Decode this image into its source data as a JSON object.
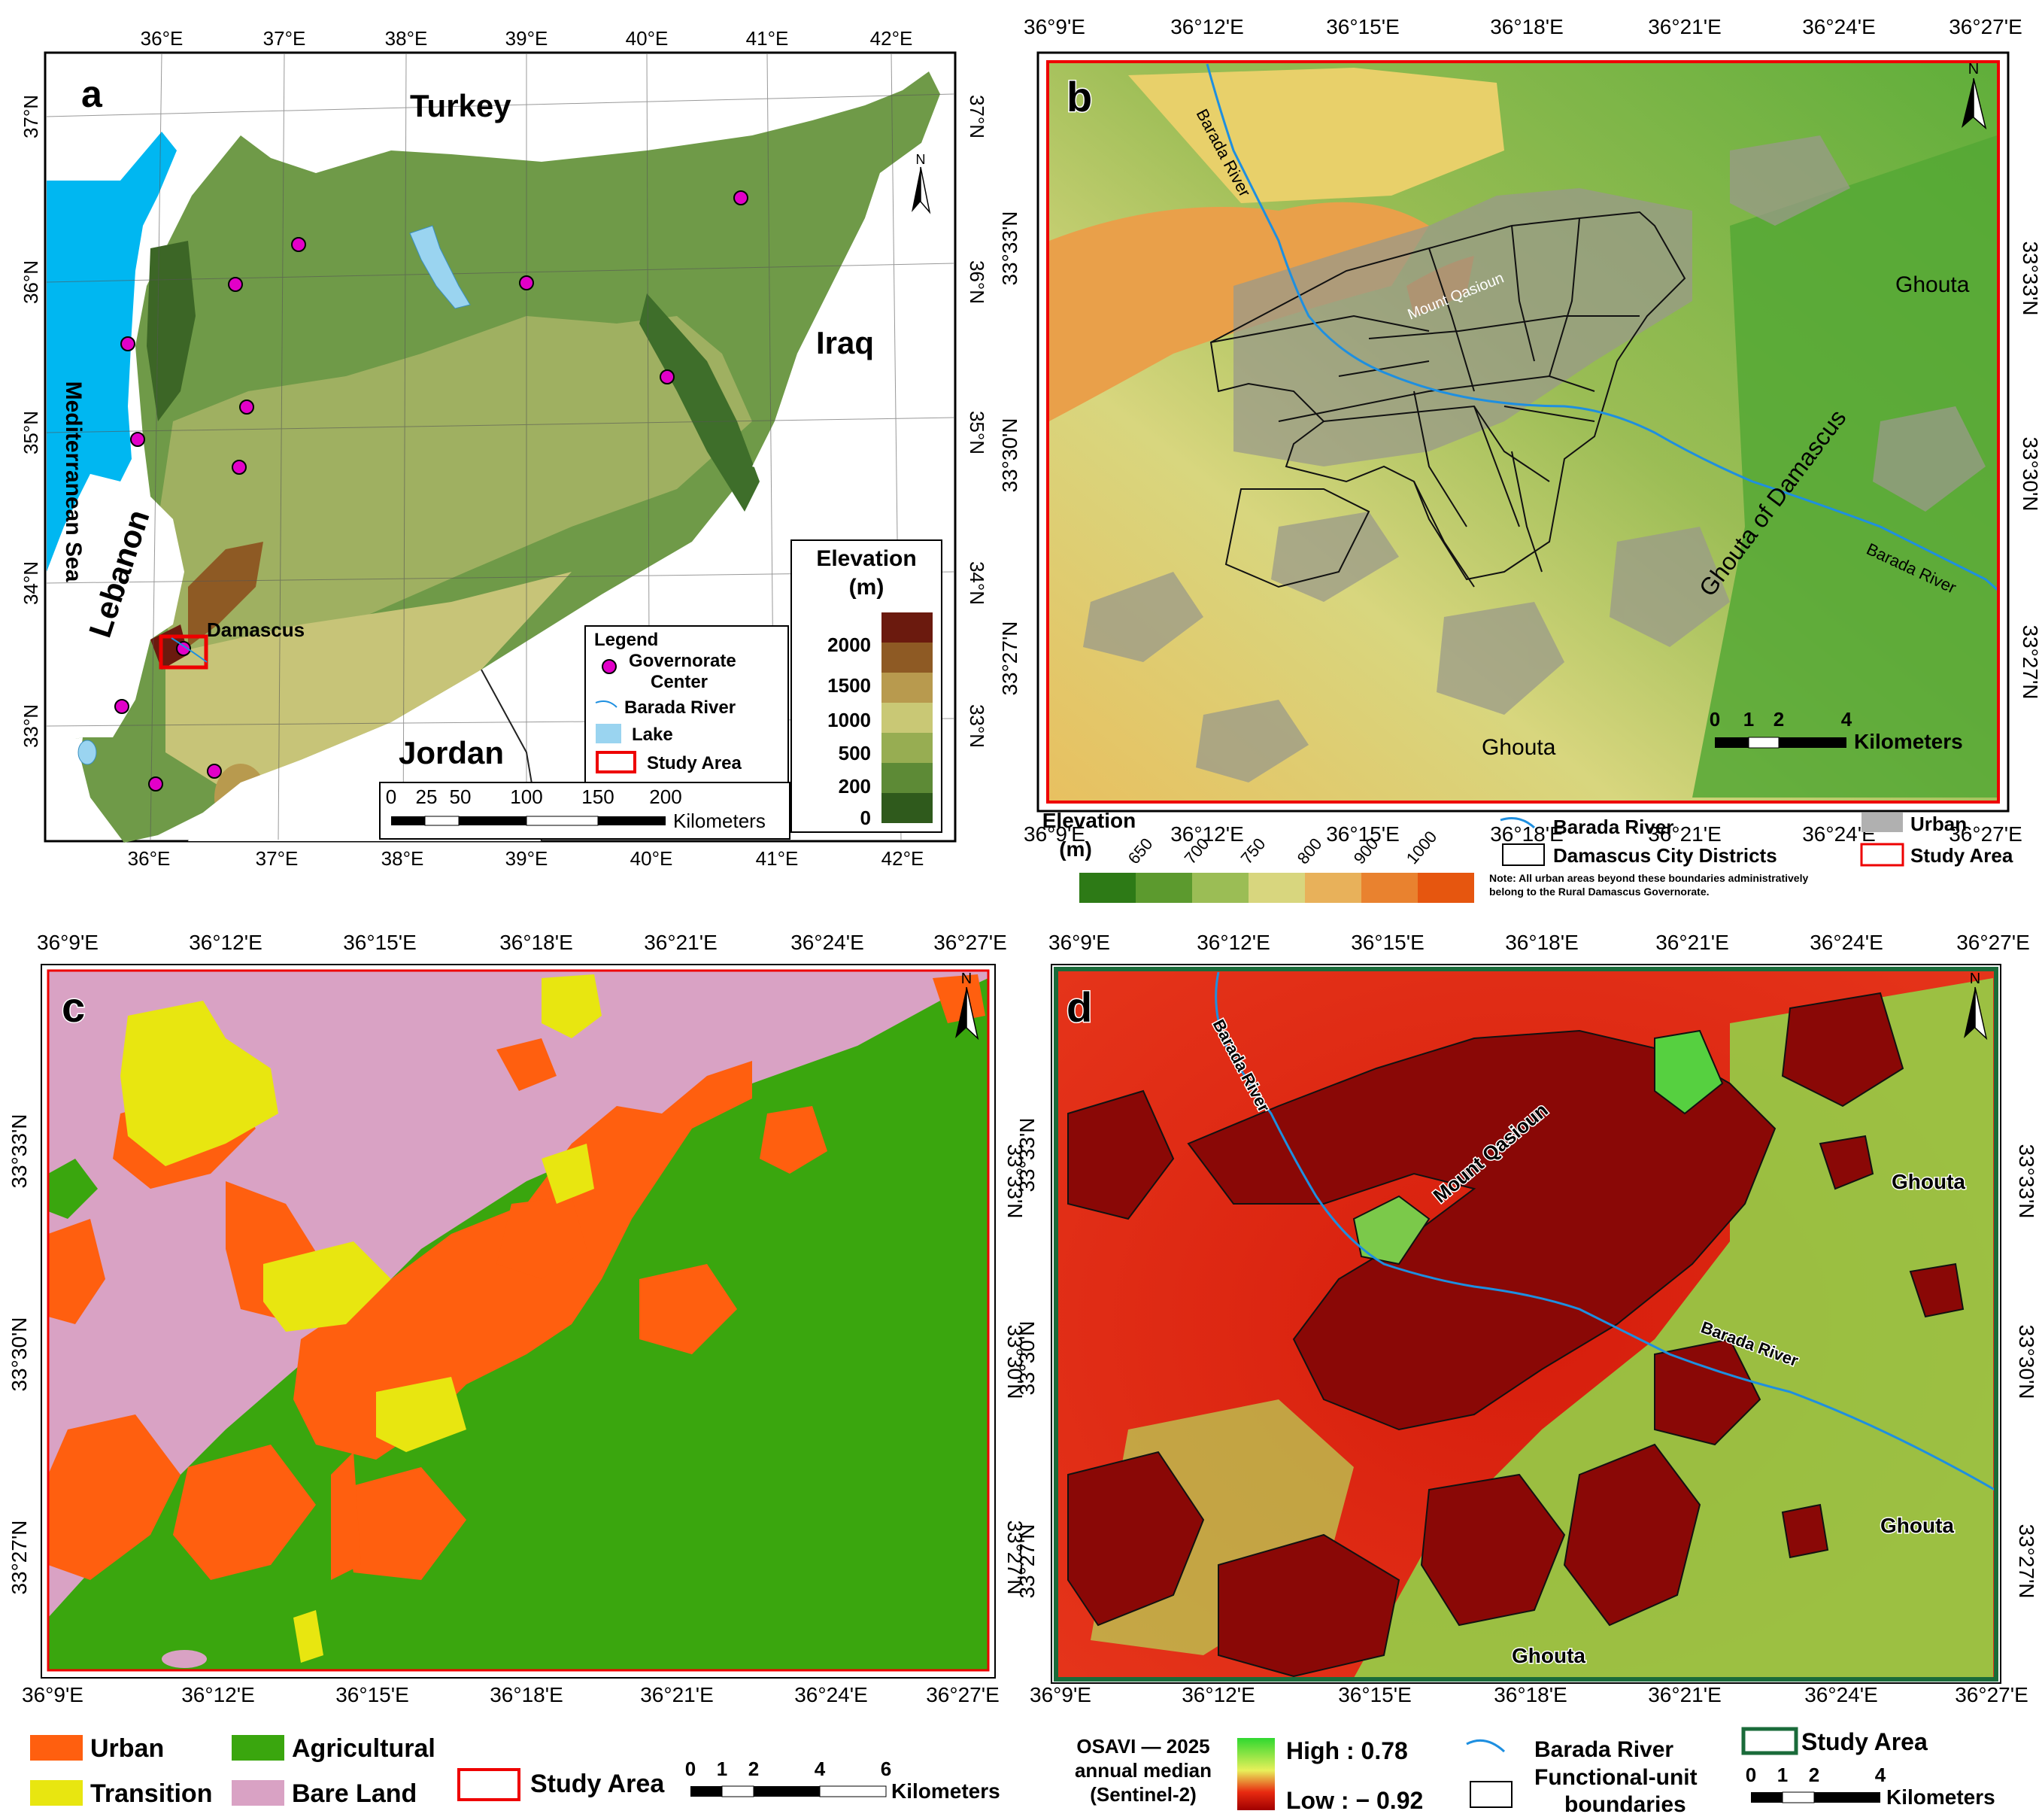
{
  "panel_a": {
    "letter": "a",
    "top_lon_ticks": [
      "36°E",
      "37°E",
      "38°E",
      "39°E",
      "40°E",
      "41°E",
      "42°E"
    ],
    "bottom_lon_ticks": [
      "36°E",
      "37°E",
      "38°E",
      "39°E",
      "40°E",
      "41°E",
      "42°E"
    ],
    "left_lat_ticks": [
      "37°N",
      "36°N",
      "35°N",
      "34°N",
      "33°N"
    ],
    "right_lat_ticks": [
      "37°N",
      "36°N",
      "35°N",
      "34°N",
      "33°N"
    ],
    "countries": {
      "turkey": "Turkey",
      "iraq": "Iraq",
      "jordan": "Jordan",
      "lebanon": "Lebanon",
      "sea": "Mediterranean Sea"
    },
    "city": "Damascus",
    "legend": {
      "title": "Legend",
      "governorate": "Governorate",
      "center": "Center",
      "river": "Barada River",
      "lake": "Lake",
      "study_area": "Study Area"
    },
    "scale": {
      "ticks": [
        "0",
        "25",
        "50",
        "100",
        "150",
        "200"
      ],
      "unit": "Kilometers"
    },
    "elevation": {
      "title_line1": "Elevation",
      "title_line2": "(m)",
      "ticks": [
        "2000",
        "1500",
        "1000",
        "500",
        "200",
        "0"
      ],
      "colors": [
        "#6b1a0e",
        "#8e5a24",
        "#b89a4e",
        "#c9c875",
        "#97ad52",
        "#5d8a36",
        "#2f5a1c"
      ]
    },
    "north": "N"
  },
  "panel_b": {
    "letter": "b",
    "lon_ticks": [
      "36°9'E",
      "36°12'E",
      "36°15'E",
      "36°18'E",
      "36°21'E",
      "36°24'E",
      "36°27'E"
    ],
    "lat_ticks": [
      "33°33'N",
      "33°30'N",
      "33°27'N"
    ],
    "labels": {
      "river1": "Barada River",
      "mount": "Mount Qasioun",
      "ghouta_ne": "Ghouta",
      "ghouta_of_damascus": "Ghouta of Damascus",
      "river2": "Barada River",
      "ghouta_s": "Ghouta"
    },
    "scale": {
      "ticks": [
        "0",
        "1",
        "2",
        "4"
      ],
      "unit": "Kilometers"
    },
    "elevation": {
      "title_line1": "Elevation",
      "title_line2": "(m)",
      "ticks": [
        "650",
        "700",
        "750",
        "800",
        "900",
        "1000"
      ],
      "colors": [
        "#2d7a16",
        "#5c9a2e",
        "#9bbd55",
        "#d8d67e",
        "#e8b15a",
        "#e9822f",
        "#e6560f"
      ]
    },
    "legend": {
      "river": "Barada River",
      "urban": "Urban",
      "districts": "Damascus City Districts",
      "study_area": "Study Area"
    },
    "note_line1": "Note: All urban areas beyond these boundaries administratively",
    "note_line2": "belong to the Rural Damascus Governorate.",
    "north": "N"
  },
  "panel_c": {
    "letter": "c",
    "lon_ticks": [
      "36°9'E",
      "36°12'E",
      "36°15'E",
      "36°18'E",
      "36°21'E",
      "36°24'E",
      "36°27'E"
    ],
    "lat_ticks": [
      "33°33'N",
      "33°30'N",
      "33°27'N"
    ],
    "legend": {
      "urban": "Urban",
      "agricultural": "Agricultural",
      "transition": "Transition",
      "bare": "Bare Land",
      "study_area": "Study Area"
    },
    "colors": {
      "urban": "#ff5f0f",
      "agricultural": "#3aa60e",
      "transition": "#e8e610",
      "bare": "#d9a2c4"
    },
    "scale": {
      "ticks": [
        "0",
        "1",
        "2",
        "4",
        "6"
      ],
      "unit": "Kilometers"
    },
    "north": "N"
  },
  "panel_d": {
    "letter": "d",
    "lon_ticks": [
      "36°9'E",
      "36°12'E",
      "36°15'E",
      "36°18'E",
      "36°21'E",
      "36°24'E",
      "36°27'E"
    ],
    "lat_ticks": [
      "33°33'N",
      "33°30'N",
      "33°27'N"
    ],
    "labels": {
      "river1": "Barada River",
      "mount": "Mount Qasioun",
      "ghouta1": "Ghouta",
      "river2": "Barada River",
      "ghouta2": "Ghouta",
      "ghouta3": "Ghouta"
    },
    "legend": {
      "index_line1": "OSAVI — 2025",
      "index_line2": "annual median",
      "index_line3": "(Sentinel-2)",
      "high": "High : 0.78",
      "low": "Low : − 0.92",
      "river": "Barada River",
      "functional_line1": "Functional-unit",
      "functional_line2": "boundaries",
      "study_area": "Study Area"
    },
    "scale": {
      "ticks": [
        "0",
        "1",
        "2",
        "4"
      ],
      "unit": "Kilometers"
    },
    "north": "N"
  }
}
